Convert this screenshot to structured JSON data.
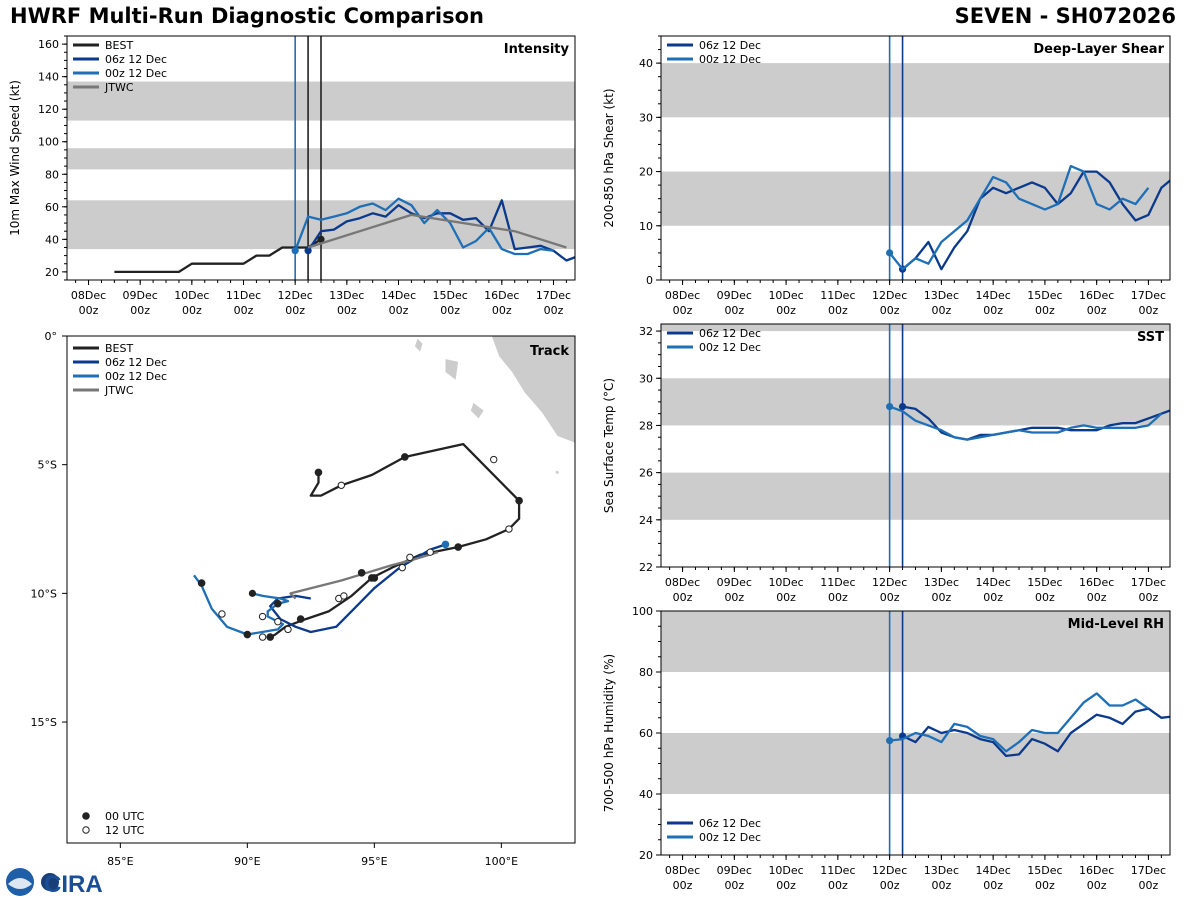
{
  "header": {
    "title": "HWRF Multi-Run Diagnostic Comparison",
    "storm": "SEVEN - SH072026"
  },
  "logo": {
    "text": "CIRA"
  },
  "colors": {
    "best": "#222222",
    "run06": "#0b3a8c",
    "run00": "#1f6fb7",
    "jtwc": "#777777",
    "band": "#cccccc"
  },
  "time_ticks": [
    {
      "day": "08Dec",
      "hour": "00z",
      "t": 0
    },
    {
      "day": "09Dec",
      "hour": "00z",
      "t": 24
    },
    {
      "day": "10Dec",
      "hour": "00z",
      "t": 48
    },
    {
      "day": "11Dec",
      "hour": "00z",
      "t": 72
    },
    {
      "day": "12Dec",
      "hour": "00z",
      "t": 96
    },
    {
      "day": "13Dec",
      "hour": "00z",
      "t": 120
    },
    {
      "day": "14Dec",
      "hour": "00z",
      "t": 144
    },
    {
      "day": "15Dec",
      "hour": "00z",
      "t": 168
    },
    {
      "day": "16Dec",
      "hour": "00z",
      "t": 192
    },
    {
      "day": "17Dec",
      "hour": "00z",
      "t": 216
    }
  ],
  "chart_data": [
    {
      "id": "intensity",
      "type": "line",
      "title": "Intensity",
      "ylabel": "10m Max Wind Speed (kt)",
      "xlim": [
        -10,
        226
      ],
      "ylim": [
        15,
        165
      ],
      "yticks": [
        20,
        40,
        60,
        80,
        100,
        120,
        140,
        160
      ],
      "bands": [
        [
          34,
          64
        ],
        [
          83,
          96
        ],
        [
          113,
          137
        ]
      ],
      "vlines": [
        {
          "t": 96,
          "color": "#1f6fb7"
        },
        {
          "t": 102,
          "color": "#222222"
        },
        {
          "t": 108,
          "color": "#222222"
        }
      ],
      "legend": [
        "BEST",
        "06z 12 Dec",
        "00z 12 Dec",
        "JTWC"
      ],
      "series": [
        {
          "name": "BEST",
          "color": "#222222",
          "t": [
            12,
            18,
            24,
            30,
            36,
            42,
            48,
            54,
            60,
            66,
            72,
            78,
            84,
            90,
            96,
            102,
            108
          ],
          "y": [
            20,
            20,
            20,
            20,
            20,
            20,
            25,
            25,
            25,
            25,
            25,
            30,
            30,
            35,
            35,
            35,
            40
          ],
          "marker_at": [
            {
              "t": 108,
              "y": 40
            }
          ]
        },
        {
          "name": "06z 12 Dec",
          "color": "#0b3a8c",
          "t": [
            102,
            108,
            114,
            120,
            126,
            132,
            138,
            144,
            150,
            156,
            162,
            168,
            174,
            180,
            186,
            192,
            198,
            204,
            210,
            216,
            222,
            228
          ],
          "y": [
            33,
            45,
            46,
            51,
            53,
            56,
            54,
            61,
            56,
            53,
            56,
            56,
            52,
            53,
            45,
            64,
            34,
            35,
            36,
            33,
            27,
            30
          ],
          "marker_at": [
            {
              "t": 102,
              "y": 33
            }
          ]
        },
        {
          "name": "00z 12 Dec",
          "color": "#1f6fb7",
          "t": [
            96,
            102,
            108,
            114,
            120,
            126,
            132,
            138,
            144,
            150,
            156,
            162,
            168,
            174,
            180,
            186,
            192,
            198,
            204,
            210,
            216
          ],
          "y": [
            33,
            54,
            52,
            54,
            56,
            60,
            62,
            58,
            65,
            61,
            50,
            58,
            50,
            35,
            39,
            47,
            34,
            31,
            31,
            34,
            33
          ],
          "marker_at": [
            {
              "t": 96,
              "y": 33
            }
          ]
        },
        {
          "name": "JTWC",
          "color": "#777777",
          "t": [
            102,
            150,
            198,
            222
          ],
          "y": [
            35,
            55,
            45,
            35
          ]
        }
      ]
    },
    {
      "id": "shear",
      "type": "line",
      "title": "Deep-Layer Shear",
      "ylabel": "200-850 hPa Shear (kt)",
      "xlim": [
        -10,
        226
      ],
      "ylim": [
        0,
        45
      ],
      "yticks": [
        0,
        10,
        20,
        30,
        40
      ],
      "bands": [
        [
          10,
          20
        ],
        [
          30,
          40
        ]
      ],
      "vlines": [
        {
          "t": 96,
          "color": "#1f6fb7"
        },
        {
          "t": 102,
          "color": "#0b3a8c"
        }
      ],
      "legend": [
        "06z 12 Dec",
        "00z 12 Dec"
      ],
      "series": [
        {
          "name": "06z 12 Dec",
          "color": "#0b3a8c",
          "t": [
            102,
            108,
            114,
            120,
            126,
            132,
            138,
            144,
            150,
            156,
            162,
            168,
            174,
            180,
            186,
            192,
            198,
            204,
            210,
            216,
            222,
            228
          ],
          "y": [
            2,
            4,
            7,
            2,
            6,
            9,
            15,
            17,
            16,
            17,
            18,
            17,
            14,
            16,
            20,
            20,
            18,
            14,
            11,
            12,
            17,
            19
          ],
          "marker_at": [
            {
              "t": 102,
              "y": 2
            }
          ]
        },
        {
          "name": "00z 12 Dec",
          "color": "#1f6fb7",
          "t": [
            96,
            102,
            108,
            114,
            120,
            126,
            132,
            138,
            144,
            150,
            156,
            162,
            168,
            174,
            180,
            186,
            192,
            198,
            204,
            210,
            216
          ],
          "y": [
            5,
            2,
            4,
            3,
            7,
            9,
            11,
            15,
            19,
            18,
            15,
            14,
            13,
            14,
            21,
            20,
            14,
            13,
            15,
            14,
            17
          ],
          "marker_at": [
            {
              "t": 96,
              "y": 5
            }
          ]
        }
      ]
    },
    {
      "id": "sst",
      "type": "line",
      "title": "SST",
      "ylabel": "Sea Surface Temp (°C)",
      "xlim": [
        -10,
        226
      ],
      "ylim": [
        22,
        32.3
      ],
      "yticks": [
        22,
        24,
        26,
        28,
        30,
        32
      ],
      "bands": [
        [
          24,
          26
        ],
        [
          28,
          30
        ],
        [
          32,
          33
        ]
      ],
      "vlines": [
        {
          "t": 96,
          "color": "#1f6fb7"
        },
        {
          "t": 102,
          "color": "#0b3a8c"
        }
      ],
      "legend": [
        "06z 12 Dec",
        "00z 12 Dec"
      ],
      "series": [
        {
          "name": "06z 12 Dec",
          "color": "#0b3a8c",
          "t": [
            102,
            108,
            114,
            120,
            126,
            132,
            138,
            144,
            150,
            156,
            162,
            168,
            174,
            180,
            186,
            192,
            198,
            204,
            210,
            216,
            222,
            228
          ],
          "y": [
            28.8,
            28.7,
            28.3,
            27.7,
            27.5,
            27.4,
            27.6,
            27.6,
            27.7,
            27.8,
            27.9,
            27.9,
            27.9,
            27.8,
            27.8,
            27.8,
            28.0,
            28.1,
            28.1,
            28.3,
            28.5,
            28.7
          ],
          "marker_at": [
            {
              "t": 102,
              "y": 28.8
            }
          ]
        },
        {
          "name": "00z 12 Dec",
          "color": "#1f6fb7",
          "t": [
            96,
            102,
            108,
            114,
            120,
            126,
            132,
            138,
            144,
            150,
            156,
            162,
            168,
            174,
            180,
            186,
            192,
            198,
            204,
            210,
            216,
            222
          ],
          "y": [
            28.8,
            28.6,
            28.2,
            28.0,
            27.8,
            27.5,
            27.4,
            27.5,
            27.6,
            27.7,
            27.8,
            27.7,
            27.7,
            27.7,
            27.9,
            28.0,
            27.9,
            27.9,
            27.9,
            27.9,
            28.0,
            28.5
          ],
          "marker_at": [
            {
              "t": 96,
              "y": 28.8
            }
          ]
        }
      ]
    },
    {
      "id": "rh",
      "type": "line",
      "title": "Mid-Level RH",
      "ylabel": "700-500 hPa Humidity (%)",
      "xlim": [
        -10,
        226
      ],
      "ylim": [
        20,
        100
      ],
      "yticks": [
        20,
        40,
        60,
        80,
        100
      ],
      "bands": [
        [
          40,
          60
        ],
        [
          80,
          100
        ]
      ],
      "vlines": [
        {
          "t": 96,
          "color": "#1f6fb7"
        },
        {
          "t": 102,
          "color": "#0b3a8c"
        }
      ],
      "legend": [
        "06z 12 Dec",
        "00z 12 Dec"
      ],
      "legend_pos": "bottom-left",
      "series": [
        {
          "name": "06z 12 Dec",
          "color": "#0b3a8c",
          "t": [
            102,
            108,
            114,
            120,
            126,
            132,
            138,
            144,
            150,
            156,
            162,
            168,
            174,
            180,
            186,
            192,
            198,
            204,
            210,
            216,
            222,
            228
          ],
          "y": [
            59,
            57,
            62,
            60,
            61,
            60,
            58,
            57,
            52.5,
            53,
            58,
            56.5,
            54,
            60,
            63,
            66,
            65,
            63,
            67,
            68,
            65,
            65.5
          ],
          "marker_at": [
            {
              "t": 102,
              "y": 59
            }
          ]
        },
        {
          "name": "00z 12 Dec",
          "color": "#1f6fb7",
          "t": [
            96,
            102,
            108,
            114,
            120,
            126,
            132,
            138,
            144,
            150,
            156,
            162,
            168,
            174,
            180,
            186,
            192,
            198,
            204,
            210,
            216
          ],
          "y": [
            57.5,
            58,
            60,
            59,
            57,
            63,
            62,
            59,
            58,
            54,
            57,
            61,
            60,
            60,
            65,
            70,
            73,
            69,
            69,
            71,
            68
          ],
          "marker_at": [
            {
              "t": 96,
              "y": 57.5
            }
          ]
        }
      ]
    },
    {
      "id": "track",
      "type": "scatter",
      "title": "Track",
      "xlim": [
        82.9,
        102.9
      ],
      "ylim": [
        -19.7,
        0
      ],
      "xticks": [
        {
          "v": 85,
          "label": "85°E"
        },
        {
          "v": 90,
          "label": "90°E"
        },
        {
          "v": 95,
          "label": "95°E"
        },
        {
          "v": 100,
          "label": "100°E"
        }
      ],
      "yticks": [
        {
          "v": 0,
          "label": "0°"
        },
        {
          "v": -5,
          "label": "5°S"
        },
        {
          "v": -10,
          "label": "10°S"
        },
        {
          "v": -15,
          "label": "15°S"
        }
      ],
      "legend": [
        "BEST",
        "06z 12 Dec",
        "00z 12 Dec",
        "JTWC"
      ],
      "marker_legend": [
        "00 UTC",
        "12 UTC"
      ],
      "series": [
        {
          "name": "BEST",
          "color": "#222222",
          "lon": [
            92.8,
            92.8,
            92.5,
            92.9,
            93.7,
            94.9,
            96.2,
            98.5,
            100.7,
            100.7,
            100.3,
            99.4,
            98.3,
            96.8,
            95.7,
            94.9,
            94.1,
            93.2,
            92.3,
            91.5,
            91.1,
            90.9
          ],
          "lat": [
            -5.3,
            -5.7,
            -6.2,
            -6.2,
            -5.8,
            -5.4,
            -4.7,
            -4.2,
            -6.4,
            -7.1,
            -7.5,
            -7.9,
            -8.2,
            -8.5,
            -9.0,
            -9.4,
            -10.1,
            -10.7,
            -11.0,
            -11.3,
            -11.6,
            -11.7
          ],
          "dots_00": [
            [
              92.8,
              -5.3
            ],
            [
              96.2,
              -4.7
            ],
            [
              100.7,
              -6.4
            ],
            [
              98.3,
              -8.2
            ],
            [
              94.9,
              -9.4
            ],
            [
              92.1,
              -11.0
            ],
            [
              90.9,
              -11.7
            ]
          ],
          "dots_12": [
            [
              93.7,
              -5.8
            ],
            [
              99.7,
              -4.8
            ],
            [
              100.3,
              -7.5
            ],
            [
              96.1,
              -9.0
            ],
            [
              93.6,
              -10.2
            ],
            [
              90.6,
              -11.7
            ]
          ]
        },
        {
          "name": "06z 12 Dec",
          "color": "#0b3a8c",
          "lon": [
            92.5,
            91.9,
            91.2,
            90.9,
            91.3,
            91.9,
            92.5,
            93.5,
            94.2,
            95.0,
            96.0,
            97.2,
            97.8
          ],
          "lat": [
            -10.2,
            -10.1,
            -10.2,
            -10.5,
            -11.0,
            -11.3,
            -11.5,
            -11.3,
            -10.6,
            -9.8,
            -9.0,
            -8.3,
            -8.1
          ]
        },
        {
          "name": "00z 12 Dec",
          "color": "#1f6fb7",
          "lon": [
            90.2,
            90.6,
            91.3,
            91.6,
            91.2,
            90.8,
            90.8,
            91.4,
            91.2,
            90.0,
            89.2,
            88.6,
            88.2,
            87.9
          ],
          "lat": [
            -10.0,
            -10.1,
            -10.2,
            -10.3,
            -10.4,
            -10.7,
            -10.9,
            -11.2,
            -11.4,
            -11.6,
            -11.3,
            -10.6,
            -9.7,
            -9.3
          ]
        },
        {
          "name": "JTWC",
          "color": "#777777",
          "lon": [
            91.9,
            91.7,
            92.5,
            93.7,
            94.7,
            95.7,
            96.5,
            97.5
          ],
          "lat": [
            -10.2,
            -10.0,
            -9.8,
            -9.5,
            -9.2,
            -8.9,
            -8.7,
            -8.4
          ]
        }
      ]
    }
  ]
}
